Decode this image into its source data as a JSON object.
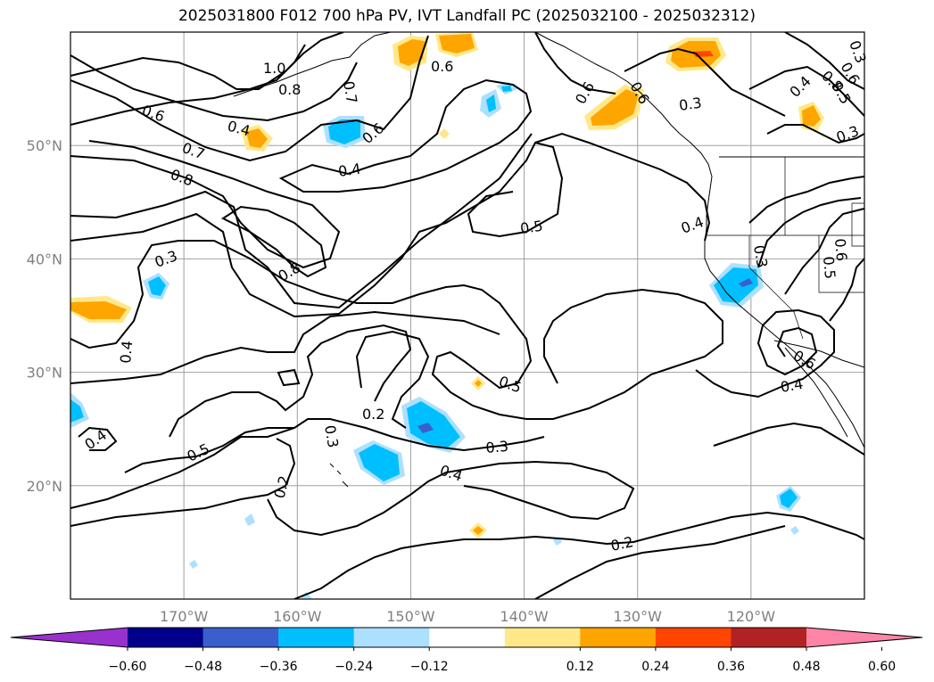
{
  "title": "2025031800 F012 700 hPa PV, IVT Landfall PC (2025032100 - 2025032312)",
  "map": {
    "projection": "PlateCarree",
    "lon_range": [
      -180,
      -110
    ],
    "lat_range": [
      10,
      60
    ],
    "gridline_color": "#a0a0a0",
    "coastline_color": "#000000",
    "lat_ticks": [
      {
        "lat": 50,
        "label": "50°N"
      },
      {
        "lat": 40,
        "label": "40°N"
      },
      {
        "lat": 30,
        "label": "30°N"
      },
      {
        "lat": 20,
        "label": "20°N"
      }
    ],
    "lon_ticks": [
      {
        "lon": -170,
        "label": "170°W"
      },
      {
        "lon": -160,
        "label": "160°W"
      },
      {
        "lon": -150,
        "label": "150°W"
      },
      {
        "lon": -140,
        "label": "140°W"
      },
      {
        "lon": -130,
        "label": "130°W"
      },
      {
        "lon": -120,
        "label": "120°W"
      }
    ],
    "contour_field": "700 hPa PV",
    "shaded_field": "IVT Landfall PC",
    "contour_labels": [
      "1.0",
      "0.8",
      "0.7",
      "0.6",
      "0.4",
      "0.7",
      "0.8",
      "0.6",
      "0.4",
      "0.6",
      "0.5",
      "0.3",
      "0.8",
      "0.4",
      "0.3",
      "0.5",
      "0.2",
      "0.3",
      "0.4",
      "0.4",
      "0.5",
      "0.3",
      "0.2",
      "0.2",
      "0.6",
      "0.6",
      "0.3",
      "0.4",
      "0.5",
      "0.6",
      "0.8",
      "0.3",
      "0.4",
      "0.6",
      "0.5",
      "0.3",
      "0.6",
      "0.4"
    ]
  },
  "colorbar": {
    "extend": "both",
    "boundaries": [
      -0.72,
      -0.6,
      -0.48,
      -0.36,
      -0.24,
      -0.12,
      0.12,
      0.24,
      0.36,
      0.48,
      0.6,
      0.72
    ],
    "colors": [
      "#9932CC",
      "#00008B",
      "#3A5FCD",
      "#00BFFF",
      "#ADE0FF",
      "#FFFFFF",
      "#FFE88A",
      "#FFA500",
      "#FF4500",
      "#B22222",
      "#FF85A8"
    ],
    "tick_labels": [
      "−0.60",
      "−0.48",
      "−0.36",
      "−0.24",
      "−0.12",
      "0.12",
      "0.24",
      "0.36",
      "0.48",
      "0.60"
    ]
  }
}
